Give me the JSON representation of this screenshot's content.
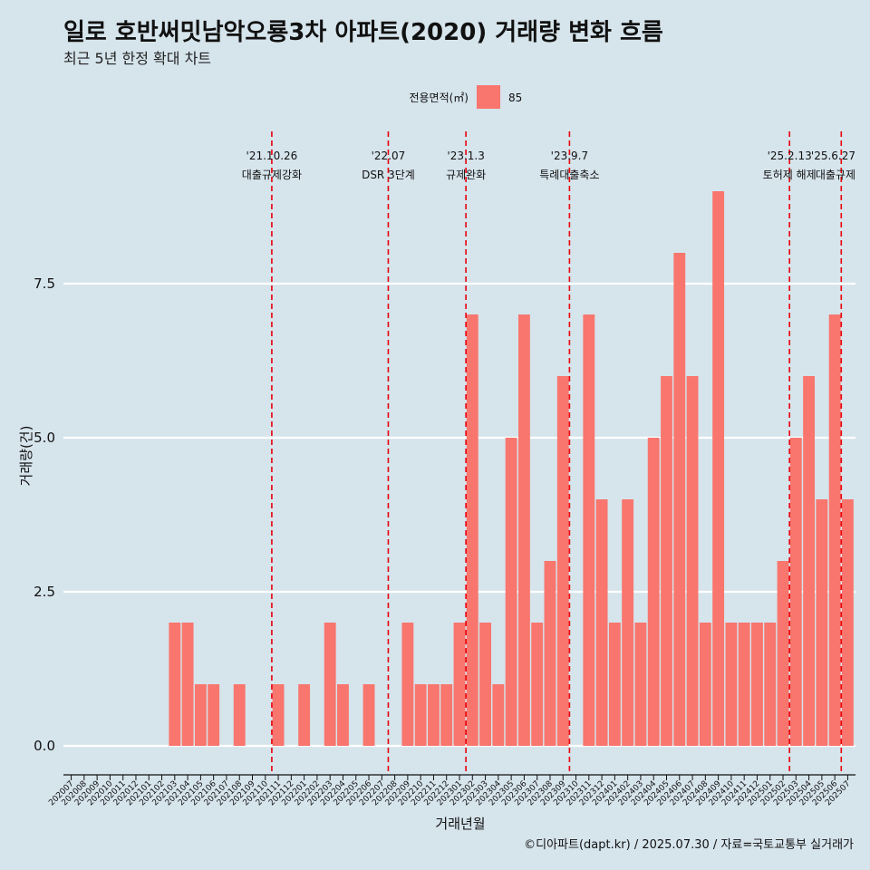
{
  "colors": {
    "background": "#d6e4ec",
    "bar": "#f8766d",
    "grid": "#ffffff",
    "event_line": "#e8000b"
  },
  "legend": {
    "title": "전용면적(㎡)",
    "items": [
      {
        "label": "85",
        "color": "#f8766d"
      }
    ]
  },
  "caption": "©디아파트(dapt.kr) / 2025.07.30 / 자료=국토교통부 실거래가",
  "chart_data": {
    "type": "bar",
    "title": "일로 호반써밋남악오룡3차 아파트(2020) 거래량 변화 흐름",
    "subtitle": "최근 5년 한정 확대 차트",
    "xlabel": "거래년월",
    "ylabel": "거래량(건)",
    "ylim": [
      -0.3,
      9.8
    ],
    "yticks": [
      0.0,
      2.5,
      5.0,
      7.5
    ],
    "ytick_labels": [
      "0.0",
      "2.5",
      "5.0",
      "7.5"
    ],
    "grid": true,
    "legend_position": "top",
    "categories": [
      "202007",
      "202008",
      "202009",
      "202010",
      "202011",
      "202012",
      "202101",
      "202102",
      "202103",
      "202104",
      "202105",
      "202106",
      "202107",
      "202108",
      "202109",
      "202110",
      "202111",
      "202112",
      "202201",
      "202202",
      "202203",
      "202204",
      "202205",
      "202206",
      "202207",
      "202208",
      "202209",
      "202210",
      "202211",
      "202212",
      "202301",
      "202302",
      "202303",
      "202304",
      "202305",
      "202306",
      "202307",
      "202308",
      "202309",
      "202310",
      "202311",
      "202312",
      "202401",
      "202402",
      "202403",
      "202404",
      "202405",
      "202406",
      "202407",
      "202408",
      "202409",
      "202410",
      "202411",
      "202412",
      "202501",
      "202502",
      "202503",
      "202504",
      "202505",
      "202506",
      "202507"
    ],
    "series": [
      {
        "name": "85",
        "values": [
          0,
          0,
          0,
          0,
          0,
          0,
          0,
          0,
          2,
          2,
          1,
          1,
          0,
          1,
          0,
          0,
          1,
          0,
          1,
          0,
          2,
          1,
          0,
          1,
          0,
          0,
          2,
          1,
          1,
          1,
          2,
          7,
          2,
          1,
          5,
          7,
          2,
          3,
          6,
          0,
          7,
          4,
          2,
          4,
          2,
          5,
          6,
          8,
          6,
          2,
          9,
          2,
          2,
          2,
          2,
          3,
          5,
          6,
          4,
          7,
          4
        ]
      }
    ],
    "events": [
      {
        "date": "'21.10.26",
        "label": "대출규제강화",
        "pos": 15.5
      },
      {
        "date": "'22.07",
        "label": "DSR 3단계",
        "pos": 24.5
      },
      {
        "date": "'23.1.3",
        "label": "규제완화",
        "pos": 30.5
      },
      {
        "date": "'23.9.7",
        "label": "특례대출축소",
        "pos": 38.5
      },
      {
        "date": "'25.2.13",
        "label": "토허제 해제",
        "pos": 55.5
      },
      {
        "date": "'25.6.27",
        "label": "대출규제",
        "pos": 59.5
      }
    ]
  }
}
